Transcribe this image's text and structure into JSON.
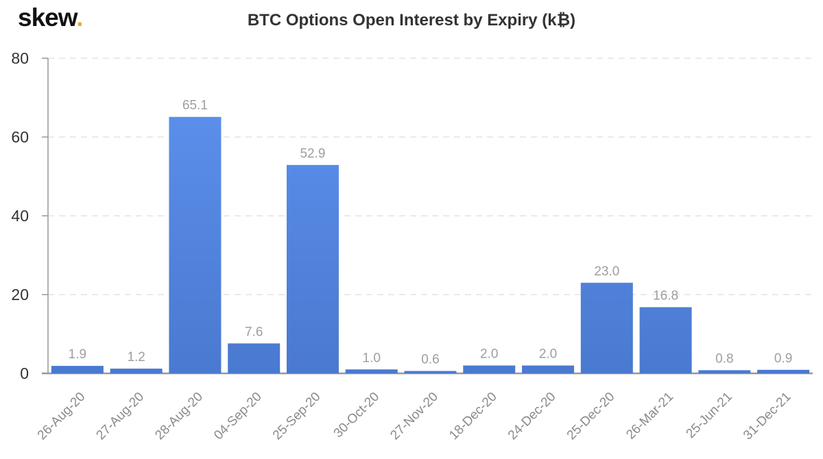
{
  "brand": {
    "logo_text": "skew",
    "logo_dot": ".",
    "logo_dot_color": "#E7A93B"
  },
  "chart_data": {
    "type": "bar",
    "title": "BTC Options Open Interest by Expiry (k₿)",
    "categories": [
      "26-Aug-20",
      "27-Aug-20",
      "28-Aug-20",
      "04-Sep-20",
      "25-Sep-20",
      "30-Oct-20",
      "27-Nov-20",
      "18-Dec-20",
      "24-Dec-20",
      "25-Dec-20",
      "26-Mar-21",
      "25-Jun-21",
      "31-Dec-21"
    ],
    "values": [
      1.9,
      1.2,
      65.1,
      7.6,
      52.9,
      1.0,
      0.6,
      2.0,
      2.0,
      23.0,
      16.8,
      0.8,
      0.9
    ],
    "value_label_decimals": 1,
    "xlabel": "",
    "ylabel": "",
    "ylim": [
      0,
      80
    ],
    "yticks": [
      0,
      20,
      40,
      60,
      80
    ],
    "grid": "horizontal-dashed",
    "legend_position": "none",
    "colors": {
      "bar_gradient_top": "#5E93F0",
      "bar_gradient_bottom": "#4A79D0",
      "value_label": "#9E9E9E",
      "x_tick_label": "#8A8A8A",
      "y_tick_label": "#333333",
      "axis_line": "#979797",
      "gridline": "#E3E3E3",
      "background": "#FFFFFF"
    }
  }
}
